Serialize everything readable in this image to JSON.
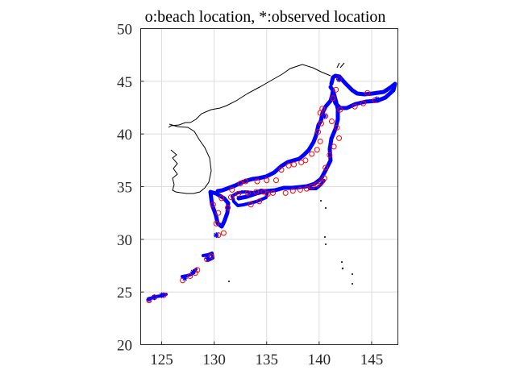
{
  "title": "o:beach location, *:observed location",
  "map": {
    "x_ticks": [
      "125",
      "130",
      "135",
      "140",
      "145"
    ],
    "y_ticks": [
      "20",
      "25",
      "30",
      "35",
      "40",
      "45",
      "50"
    ],
    "lon_range": [
      123,
      147.5
    ],
    "lat_range": [
      20,
      50
    ],
    "grid": true,
    "colors": {
      "beach_marker": "#ff0000",
      "observed_marker": "#0000ff",
      "coastline": "#000000"
    }
  },
  "chart_data": {
    "type": "scatter",
    "title": "o:beach location, *:observed location",
    "xlim": [
      123,
      147.5
    ],
    "ylim": [
      20,
      50
    ],
    "grid": true,
    "series": [
      {
        "marker": "circle",
        "color": "#ff0000",
        "points": [
          [
            123.8,
            24.2
          ],
          [
            124.3,
            24.5
          ],
          [
            125.2,
            24.7
          ],
          [
            127.0,
            26.1
          ],
          [
            127.7,
            26.5
          ],
          [
            128.2,
            26.8
          ],
          [
            128.4,
            27.1
          ],
          [
            129.3,
            28.1
          ],
          [
            129.7,
            28.4
          ],
          [
            130.4,
            30.4
          ],
          [
            130.9,
            30.6
          ],
          [
            130.2,
            31.5
          ],
          [
            130.4,
            32.5
          ],
          [
            129.9,
            33.3
          ],
          [
            130.7,
            33.9
          ],
          [
            131.3,
            33.0
          ],
          [
            131.6,
            34.0
          ],
          [
            132.3,
            34.3
          ],
          [
            133.2,
            34.4
          ],
          [
            134.0,
            34.5
          ],
          [
            134.7,
            34.5
          ],
          [
            135.1,
            34.3
          ],
          [
            135.6,
            34.4
          ],
          [
            133.5,
            33.3
          ],
          [
            134.3,
            33.6
          ],
          [
            136.8,
            34.4
          ],
          [
            137.5,
            34.6
          ],
          [
            138.2,
            34.7
          ],
          [
            138.8,
            34.8
          ],
          [
            139.3,
            35.0
          ],
          [
            139.8,
            35.2
          ],
          [
            140.2,
            35.4
          ],
          [
            140.5,
            35.8
          ],
          [
            140.6,
            36.8
          ],
          [
            141.0,
            38.0
          ],
          [
            141.4,
            38.8
          ],
          [
            141.9,
            39.6
          ],
          [
            141.7,
            40.6
          ],
          [
            141.2,
            41.2
          ],
          [
            140.6,
            41.7
          ],
          [
            140.3,
            42.4
          ],
          [
            140.1,
            42.0
          ],
          [
            140.2,
            41.0
          ],
          [
            139.9,
            40.2
          ],
          [
            140.1,
            39.3
          ],
          [
            139.8,
            38.5
          ],
          [
            139.3,
            38.1
          ],
          [
            138.7,
            37.5
          ],
          [
            138.3,
            37.3
          ],
          [
            137.6,
            37.1
          ],
          [
            137.1,
            37.0
          ],
          [
            136.4,
            36.6
          ],
          [
            135.9,
            35.6
          ],
          [
            135.0,
            35.6
          ],
          [
            134.1,
            35.5
          ],
          [
            133.0,
            35.5
          ],
          [
            132.5,
            35.3
          ],
          [
            131.7,
            34.7
          ],
          [
            142.0,
            42.3
          ],
          [
            143.4,
            42.6
          ],
          [
            144.2,
            42.9
          ],
          [
            145.3,
            43.2
          ],
          [
            144.6,
            43.9
          ],
          [
            141.9,
            45.2
          ],
          [
            141.6,
            44.2
          ],
          [
            141.3,
            43.4
          ]
        ]
      },
      {
        "marker": "asterisk",
        "color": "#0000ff",
        "points": [
          [
            123.8,
            24.3
          ],
          [
            124.3,
            24.5
          ],
          [
            125.0,
            24.7
          ],
          [
            127.2,
            26.3
          ],
          [
            128.0,
            26.9
          ],
          [
            129.4,
            28.2
          ],
          [
            130.2,
            30.4
          ],
          [
            141.9,
            45.2
          ],
          [
            145.5,
            43.3
          ],
          [
            140.5,
            41.7
          ]
        ]
      }
    ]
  }
}
